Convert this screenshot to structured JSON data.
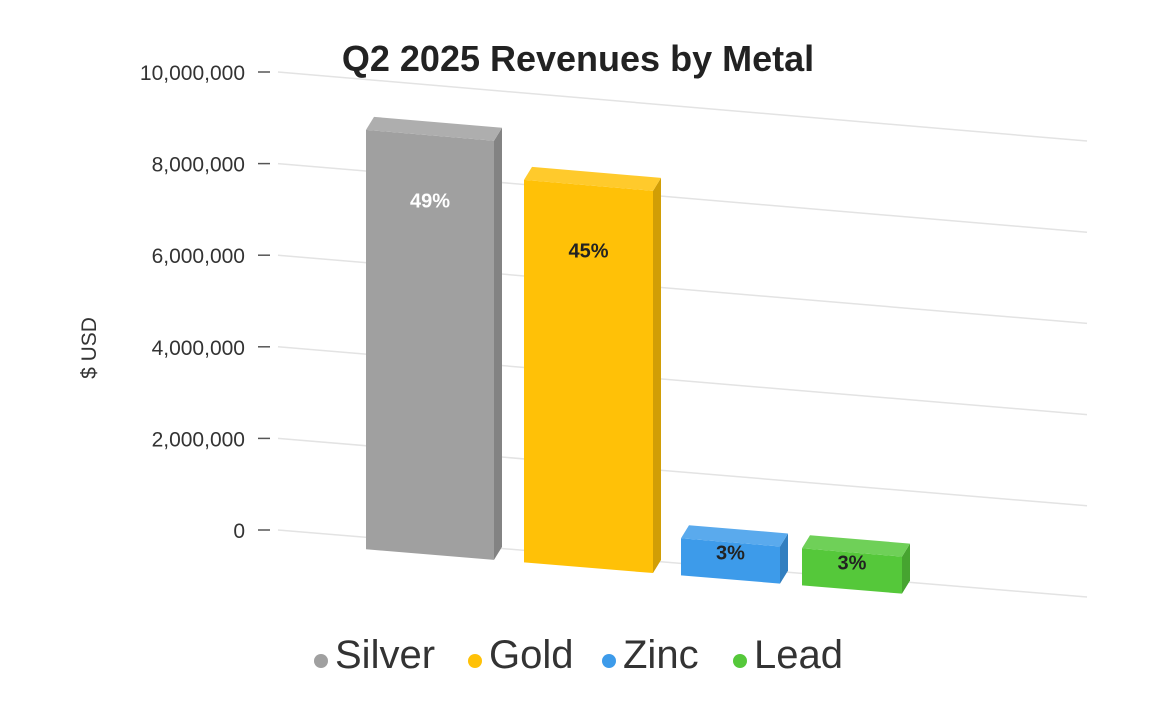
{
  "chart_data": {
    "type": "bar",
    "title": "Q2 2025 Revenues by Metal",
    "xlabel": "",
    "ylabel": "$ USD",
    "ylim": [
      0,
      10000000
    ],
    "y_ticks": [
      0,
      2000000,
      4000000,
      6000000,
      8000000,
      10000000
    ],
    "y_tick_labels": [
      "0",
      "2,000,000",
      "4,000,000",
      "6,000,000",
      "8,000,000",
      "10,000,000"
    ],
    "grid": true,
    "legend_position": "bottom",
    "three_d": true,
    "categories": [
      "Silver",
      "Gold",
      "Zinc",
      "Lead"
    ],
    "values": [
      8900000,
      8100000,
      550000,
      550000
    ],
    "data_labels": [
      "49%",
      "45%",
      "3%",
      "3%"
    ],
    "colors": [
      "#A0A0A0",
      "#FFC107",
      "#3D9BEA",
      "#55C83A"
    ],
    "label_colors": [
      "#FFFFFF",
      "#222222",
      "#222222",
      "#222222"
    ]
  }
}
